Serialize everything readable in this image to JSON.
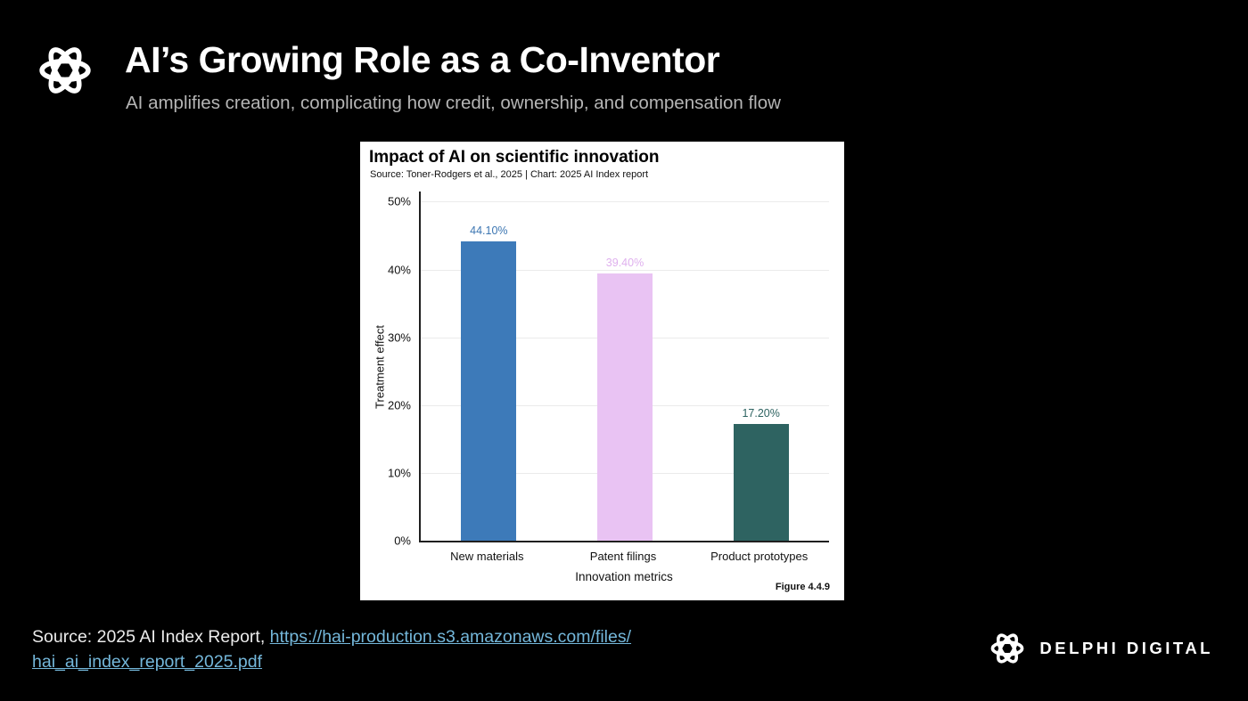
{
  "header": {
    "title": "AI’s Growing Role as a Co-Inventor",
    "subtitle": "AI amplifies creation, complicating how credit, ownership, and compensation flow"
  },
  "chart_card": {
    "title": "Impact of AI on scientific innovation",
    "source_line": "Source: Toner-Rodgers et al., 2025 | Chart: 2025 AI Index report",
    "figure_label": "Figure 4.4.9"
  },
  "chart_data": {
    "type": "bar",
    "title": "Impact of AI on scientific innovation",
    "categories": [
      "New materials",
      "Patent filings",
      "Product prototypes"
    ],
    "values": [
      44.1,
      39.4,
      17.2
    ],
    "value_labels": [
      "44.10%",
      "39.40%",
      "17.20%"
    ],
    "bar_colors": [
      "#3d7ab9",
      "#e9c3f3",
      "#2e6361"
    ],
    "label_colors": [
      "#3c76b2",
      "#dfb0ee",
      "#2e6361"
    ],
    "xlabel": "Innovation metrics",
    "ylabel": "Treatment effect",
    "ylim": [
      0,
      51.5
    ],
    "yticks": [
      0,
      10,
      20,
      30,
      40,
      50
    ],
    "ytick_labels": [
      "0%",
      "10%",
      "20%",
      "30%",
      "40%",
      "50%"
    ],
    "grid": true,
    "legend": false
  },
  "footer": {
    "source_prefix": "Source: 2025 AI Index Report, ",
    "link_line1": "https://hai-production.s3.amazonaws.com/files/",
    "link_line2": "hai_ai_index_report_2025.pdf",
    "brand": "DELPHI DIGITAL"
  }
}
